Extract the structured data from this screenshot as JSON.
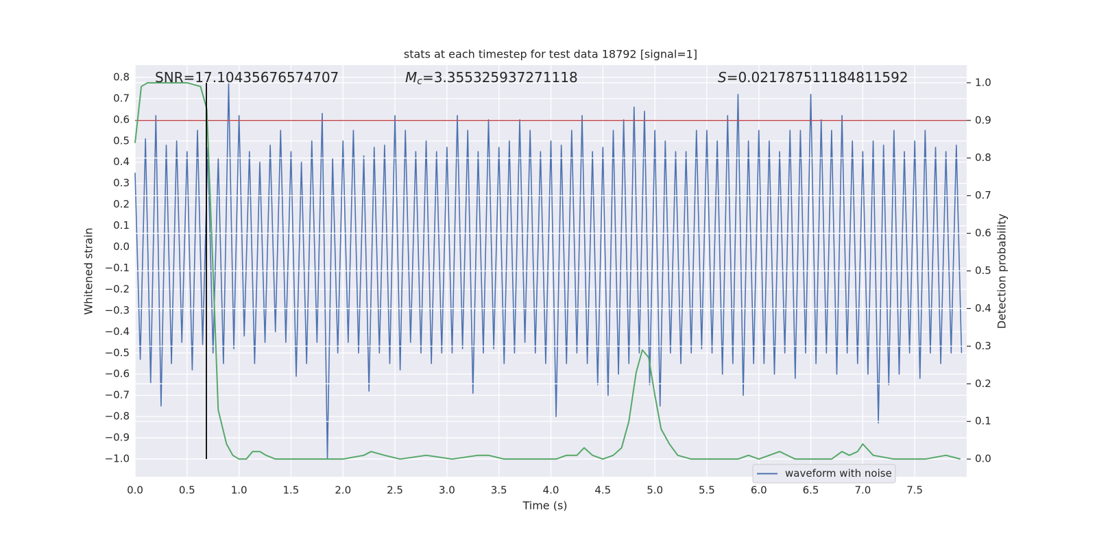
{
  "chart_data": {
    "type": "line",
    "title": "stats at each timestep for test data 18792 [signal=1]",
    "xlabel": "Time (s)",
    "ylabel": "Whitened strain",
    "y2label": "Detection probability",
    "annotations": [
      {
        "text": "SNR=17.10435676574707"
      },
      {
        "italic": "M",
        "sub": "c",
        "text": "=3.355325937271118"
      },
      {
        "italic": "S",
        "text": "=0.021787511184811592"
      }
    ],
    "xlim": [
      0,
      8
    ],
    "ylim": [
      -1.084,
      0.858
    ],
    "y2lim": [
      -0.047,
      1.047
    ],
    "xticks": [
      {
        "value": 0,
        "label": "0.0"
      },
      {
        "value": 0.5,
        "label": "0.5"
      },
      {
        "value": 1,
        "label": "1.0"
      },
      {
        "value": 1.5,
        "label": "1.5"
      },
      {
        "value": 2,
        "label": "2.0"
      },
      {
        "value": 2.5,
        "label": "2.5"
      },
      {
        "value": 3,
        "label": "3.0"
      },
      {
        "value": 3.5,
        "label": "3.5"
      },
      {
        "value": 4,
        "label": "4.0"
      },
      {
        "value": 4.5,
        "label": "4.5"
      },
      {
        "value": 5,
        "label": "5.0"
      },
      {
        "value": 5.5,
        "label": "5.5"
      },
      {
        "value": 6,
        "label": "6.0"
      },
      {
        "value": 6.5,
        "label": "6.5"
      },
      {
        "value": 7,
        "label": "7.0"
      },
      {
        "value": 7.5,
        "label": "7.5"
      }
    ],
    "yticks": [
      {
        "value": -1.0,
        "label": "−1.0"
      },
      {
        "value": -0.9,
        "label": "−0.9"
      },
      {
        "value": -0.8,
        "label": "−0.8"
      },
      {
        "value": -0.7,
        "label": "−0.7"
      },
      {
        "value": -0.6,
        "label": "−0.6"
      },
      {
        "value": -0.5,
        "label": "−0.5"
      },
      {
        "value": -0.4,
        "label": "−0.4"
      },
      {
        "value": -0.3,
        "label": "−0.3"
      },
      {
        "value": -0.2,
        "label": "−0.2"
      },
      {
        "value": -0.1,
        "label": "−0.1"
      },
      {
        "value": 0,
        "label": "0.0"
      },
      {
        "value": 0.1,
        "label": "0.1"
      },
      {
        "value": 0.2,
        "label": "0.2"
      },
      {
        "value": 0.3,
        "label": "0.3"
      },
      {
        "value": 0.4,
        "label": "0.4"
      },
      {
        "value": 0.5,
        "label": "0.5"
      },
      {
        "value": 0.6,
        "label": "0.6"
      },
      {
        "value": 0.7,
        "label": "0.7"
      },
      {
        "value": 0.8,
        "label": "0.8"
      }
    ],
    "y2ticks": [
      {
        "value": 0,
        "label": "0.0"
      },
      {
        "value": 0.1,
        "label": "0.1"
      },
      {
        "value": 0.2,
        "label": "0.2"
      },
      {
        "value": 0.3,
        "label": "0.3"
      },
      {
        "value": 0.4,
        "label": "0.4"
      },
      {
        "value": 0.5,
        "label": "0.5"
      },
      {
        "value": 0.6,
        "label": "0.6"
      },
      {
        "value": 0.7,
        "label": "0.7"
      },
      {
        "value": 0.8,
        "label": "0.8"
      },
      {
        "value": 0.9,
        "label": "0.9"
      },
      {
        "value": 1,
        "label": "1.0"
      }
    ],
    "grid": true,
    "legend": "lower right",
    "hlines": [
      {
        "y": 0.9,
        "axis": "y2",
        "color": "#c44e52"
      }
    ],
    "vlines": [
      {
        "x": 0.686,
        "ymin": 0,
        "ymax": 1,
        "axis": "y2",
        "color": "#000000"
      }
    ],
    "series": [
      {
        "name": "waveform with noise",
        "color": "#4c72b0",
        "x": [
          0,
          0.05,
          0.1,
          0.15,
          0.2,
          0.25,
          0.3,
          0.35,
          0.4,
          0.45,
          0.5,
          0.55,
          0.6,
          0.65,
          0.7,
          0.75,
          0.8,
          0.85,
          0.9,
          0.95,
          1,
          1.05,
          1.1,
          1.15,
          1.2,
          1.25,
          1.3,
          1.35,
          1.4,
          1.45,
          1.5,
          1.55,
          1.6,
          1.65,
          1.7,
          1.75,
          1.8,
          1.85,
          1.9,
          1.95,
          2,
          2.05,
          2.1,
          2.15,
          2.2,
          2.25,
          2.3,
          2.35,
          2.4,
          2.45,
          2.5,
          2.55,
          2.6,
          2.65,
          2.7,
          2.75,
          2.8,
          2.85,
          2.9,
          2.95,
          3,
          3.05,
          3.1,
          3.15,
          3.2,
          3.25,
          3.3,
          3.35,
          3.4,
          3.45,
          3.5,
          3.55,
          3.6,
          3.65,
          3.7,
          3.75,
          3.8,
          3.85,
          3.9,
          3.95,
          4,
          4.05,
          4.1,
          4.15,
          4.2,
          4.25,
          4.3,
          4.35,
          4.4,
          4.45,
          4.5,
          4.55,
          4.6,
          4.65,
          4.7,
          4.75,
          4.8,
          4.85,
          4.9,
          4.95,
          5,
          5.05,
          5.1,
          5.15,
          5.2,
          5.25,
          5.3,
          5.35,
          5.4,
          5.45,
          5.5,
          5.55,
          5.6,
          5.65,
          5.7,
          5.75,
          5.8,
          5.85,
          5.9,
          5.95,
          6,
          6.05,
          6.1,
          6.15,
          6.2,
          6.25,
          6.3,
          6.35,
          6.4,
          6.45,
          6.5,
          6.55,
          6.6,
          6.65,
          6.7,
          6.75,
          6.8,
          6.85,
          6.9,
          6.95,
          7,
          7.05,
          7.1,
          7.15,
          7.2,
          7.25,
          7.3,
          7.35,
          7.4,
          7.45,
          7.5,
          7.55,
          7.6,
          7.65,
          7.7,
          7.75,
          7.8,
          7.85,
          7.9,
          7.95
        ],
        "values": [
          0.35,
          -0.53,
          0.51,
          -0.64,
          0.62,
          -0.75,
          0.48,
          -0.55,
          0.5,
          -0.45,
          0.45,
          -0.58,
          0.55,
          -0.46,
          0.47,
          -0.5,
          0.42,
          -0.55,
          0.77,
          -0.48,
          0.62,
          -0.42,
          0.45,
          -0.55,
          0.4,
          -0.45,
          0.48,
          -0.4,
          0.55,
          -0.45,
          0.45,
          -0.61,
          0.4,
          -0.55,
          0.5,
          -0.45,
          0.63,
          -1.0,
          0.42,
          -0.5,
          0.5,
          -0.45,
          0.55,
          -0.5,
          0.43,
          -0.68,
          0.47,
          -0.5,
          0.48,
          -0.55,
          0.62,
          -0.58,
          0.55,
          -0.45,
          0.45,
          -0.5,
          0.5,
          -0.55,
          0.45,
          -0.5,
          0.47,
          -0.5,
          0.62,
          -0.48,
          0.55,
          -0.69,
          0.45,
          -0.5,
          0.6,
          -0.48,
          0.47,
          -0.55,
          0.5,
          -0.5,
          0.6,
          -0.45,
          0.55,
          -0.5,
          0.45,
          -0.55,
          0.5,
          -0.8,
          0.48,
          -0.55,
          0.55,
          -0.5,
          0.62,
          -0.55,
          0.45,
          -0.65,
          0.47,
          -0.7,
          0.55,
          -0.6,
          0.6,
          -0.55,
          0.66,
          -0.5,
          0.64,
          -0.65,
          0.55,
          -0.75,
          0.5,
          -0.5,
          0.45,
          -0.55,
          0.45,
          -0.5,
          0.55,
          -0.48,
          0.55,
          -0.5,
          0.5,
          -0.6,
          0.62,
          -0.55,
          0.72,
          -0.7,
          0.5,
          -0.55,
          0.55,
          -0.55,
          0.5,
          -0.6,
          0.45,
          -0.5,
          0.55,
          -0.62,
          0.55,
          -0.5,
          0.72,
          -0.55,
          0.6,
          -0.5,
          0.55,
          -0.6,
          0.62,
          -0.5,
          0.5,
          -0.55,
          0.45,
          -0.6,
          0.5,
          -0.83,
          0.48,
          -0.65,
          0.55,
          -0.6,
          0.45,
          -0.5,
          0.5,
          -0.62,
          0.55,
          -0.5,
          0.47,
          -0.55,
          0.45,
          -0.5,
          0.48,
          -0.5
        ]
      },
      {
        "color": "#55a868",
        "axis": "y2",
        "x": [
          0,
          0.06,
          0.12,
          0.3,
          0.5,
          0.63,
          0.69,
          0.75,
          0.8,
          0.88,
          0.94,
          1,
          1.07,
          1.13,
          1.2,
          1.26,
          1.35,
          1.5,
          1.65,
          1.8,
          2,
          2.2,
          2.27,
          2.4,
          2.55,
          2.8,
          3.05,
          3.3,
          3.4,
          3.55,
          3.8,
          4.05,
          4.15,
          4.25,
          4.32,
          4.4,
          4.5,
          4.6,
          4.68,
          4.75,
          4.82,
          4.88,
          4.94,
          5,
          5.06,
          5.14,
          5.22,
          5.35,
          5.6,
          5.8,
          5.9,
          6,
          6.2,
          6.35,
          6.55,
          6.7,
          6.8,
          6.87,
          6.95,
          7,
          7.1,
          7.3,
          7.6,
          7.8,
          7.94
        ],
        "values": [
          0.84,
          0.99,
          1,
          1,
          1,
          0.99,
          0.93,
          0.5,
          0.13,
          0.04,
          0.01,
          0,
          0,
          0.02,
          0.02,
          0.01,
          0,
          0,
          0,
          0,
          0,
          0.01,
          0.02,
          0.01,
          0,
          0.01,
          0,
          0.01,
          0.01,
          0,
          0,
          0,
          0.01,
          0.01,
          0.03,
          0.01,
          0,
          0.01,
          0.03,
          0.1,
          0.23,
          0.29,
          0.27,
          0.17,
          0.08,
          0.04,
          0.01,
          0,
          0,
          0,
          0.01,
          0,
          0.02,
          0,
          0,
          0,
          0.02,
          0.01,
          0.02,
          0.04,
          0.01,
          0,
          0,
          0.01,
          0
        ]
      }
    ]
  }
}
